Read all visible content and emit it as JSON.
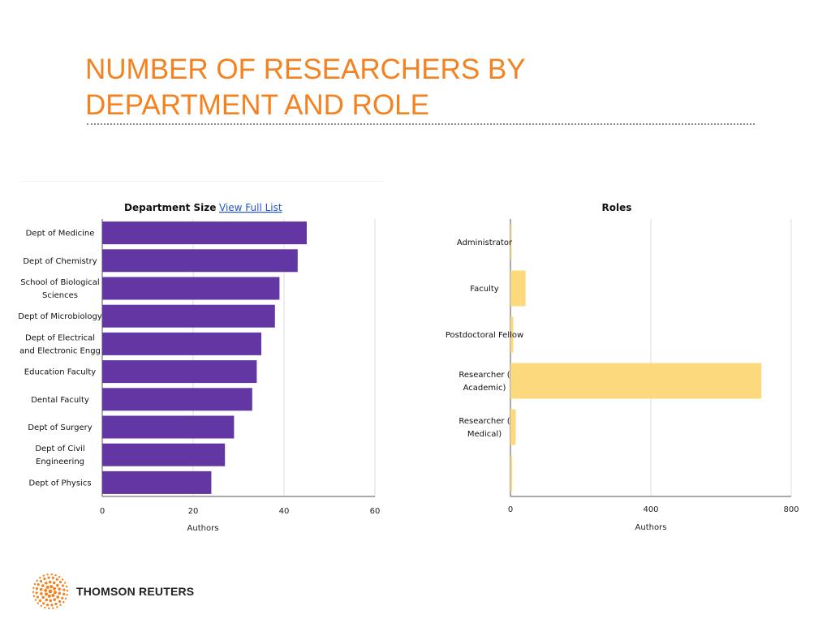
{
  "slide": {
    "title_line1": "NUMBER OF RESEARCHERS BY",
    "title_line2": "DEPARTMENT AND ROLE"
  },
  "logo": {
    "text": "THOMSON REUTERS"
  },
  "colors": {
    "title": "#f58220",
    "department_bars": "#6236a3",
    "role_bars": "#fcd97d",
    "link": "#2255cc"
  },
  "chart_data": [
    {
      "type": "bar",
      "orientation": "horizontal",
      "title": "Department Size",
      "title_link": "View Full List",
      "xlabel": "Authors",
      "ylabel": "",
      "xlim": [
        0,
        60
      ],
      "xticks": [
        0,
        20,
        40,
        60
      ],
      "grid": true,
      "categories": [
        [
          "Dept of Medicine"
        ],
        [
          "Dept of Chemistry"
        ],
        [
          "School of Biological",
          "Sciences"
        ],
        [
          "Dept of Microbiology"
        ],
        [
          "Dept of Electrical",
          "and Electronic Engg"
        ],
        [
          "Education Faculty"
        ],
        [
          "Dental Faculty"
        ],
        [
          "Dept of Surgery"
        ],
        [
          "Dept of Civil",
          "Engineering"
        ],
        [
          "Dept of Physics"
        ]
      ],
      "values": [
        45,
        43,
        39,
        38,
        35,
        34,
        33,
        29,
        27,
        24
      ]
    },
    {
      "type": "bar",
      "orientation": "horizontal",
      "title": "Roles",
      "xlabel": "Authors",
      "ylabel": "",
      "xlim": [
        0,
        800
      ],
      "xticks": [
        0,
        400,
        800
      ],
      "grid": true,
      "categories": [
        [
          "Administrator"
        ],
        [
          "Faculty"
        ],
        [
          "Postdoctoral Fellow"
        ],
        [
          "Researcher (",
          "Academic)"
        ],
        [
          "Researcher (",
          "Medical)"
        ],
        [
          ""
        ]
      ],
      "values": [
        2,
        43,
        8,
        715,
        15,
        5
      ]
    }
  ]
}
